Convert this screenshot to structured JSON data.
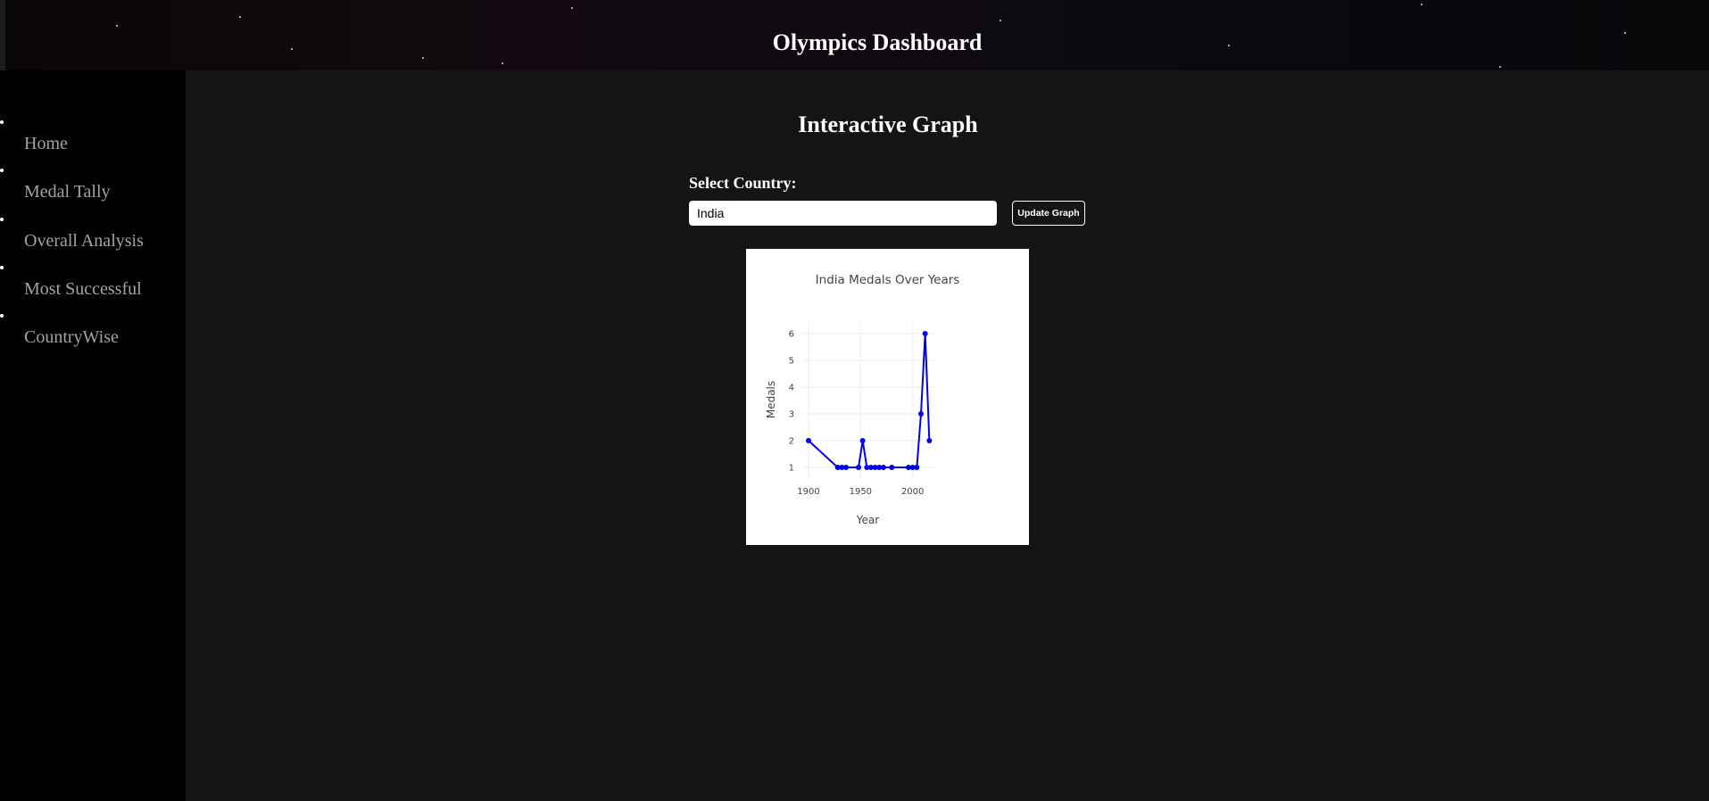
{
  "header": {
    "title": "Olympics Dashboard"
  },
  "sidebar": {
    "items": [
      {
        "label": "Home"
      },
      {
        "label": "Medal Tally"
      },
      {
        "label": "Overall Analysis"
      },
      {
        "label": "Most Successful"
      },
      {
        "label": "CountryWise"
      }
    ]
  },
  "main": {
    "title": "Interactive Graph",
    "country_label": "Select Country:",
    "country_value": "India",
    "update_button_label": "Update Graph"
  },
  "colors": {
    "line": "#0000ee",
    "grid": "#eeeeee",
    "axis_text": "#444444"
  },
  "chart_data": {
    "type": "line",
    "title": "India Medals Over Years",
    "xlabel": "Year",
    "ylabel": "Medals",
    "xlim": [
      1894,
      2020
    ],
    "ylim": [
      0.6,
      6.4
    ],
    "x_ticks": [
      1900,
      1950,
      2000
    ],
    "y_ticks": [
      1,
      2,
      3,
      4,
      5,
      6
    ],
    "grid": true,
    "markers": true,
    "series": [
      {
        "x": [
          1900,
          1928,
          1932,
          1936,
          1948,
          1952,
          1956,
          1960,
          1964,
          1968,
          1972,
          1980,
          1996,
          2000,
          2004,
          2008,
          2012,
          2016
        ],
        "y": [
          2,
          1,
          1,
          1,
          1,
          2,
          1,
          1,
          1,
          1,
          1,
          1,
          1,
          1,
          1,
          3,
          6,
          2
        ]
      }
    ]
  }
}
